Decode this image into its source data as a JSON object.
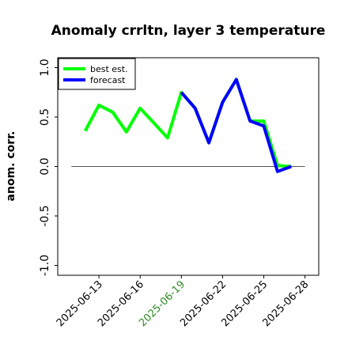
{
  "chart_data": {
    "type": "line",
    "title": "Anomaly crrltn, layer 3 temperature",
    "xlabel": "",
    "ylabel": "anom. corr.",
    "xlim": [
      "2025-06-10",
      "2025-06-29"
    ],
    "ylim": [
      -1.1,
      1.1
    ],
    "y_ticks": [
      -1.0,
      -0.5,
      0.0,
      0.5,
      1.0
    ],
    "y_tick_labels": [
      "-1.0",
      "-0.5",
      "0.0",
      "0.5",
      "1.0"
    ],
    "x_ticks": [
      "2025-06-13",
      "2025-06-16",
      "2025-06-19",
      "2025-06-22",
      "2025-06-25",
      "2025-06-28"
    ],
    "highlighted_x_tick": "2025-06-19",
    "grid": false,
    "reference_line": {
      "y": 0.0,
      "from": "2025-06-11",
      "to": "2025-06-28"
    },
    "legend": {
      "placement": "top-left"
    },
    "series": [
      {
        "name": "best est.",
        "color": "#00ff00",
        "x": [
          "2025-06-12",
          "2025-06-13",
          "2025-06-14",
          "2025-06-15",
          "2025-06-16",
          "2025-06-17",
          "2025-06-18",
          "2025-06-19",
          "2025-06-20",
          "2025-06-21",
          "2025-06-22",
          "2025-06-23",
          "2025-06-24",
          "2025-06-25",
          "2025-06-26",
          "2025-06-27"
        ],
        "values": [
          0.36,
          0.62,
          0.55,
          0.35,
          0.59,
          0.44,
          0.29,
          0.75,
          0.59,
          0.24,
          0.65,
          0.88,
          0.46,
          0.46,
          0.01,
          0.0
        ]
      },
      {
        "name": "forecast",
        "color": "#0000ff",
        "x": [
          "2025-06-19",
          "2025-06-20",
          "2025-06-21",
          "2025-06-22",
          "2025-06-23",
          "2025-06-24",
          "2025-06-25",
          "2025-06-26",
          "2025-06-27"
        ],
        "values": [
          0.75,
          0.59,
          0.24,
          0.65,
          0.88,
          0.46,
          0.41,
          -0.05,
          0.0
        ]
      }
    ]
  }
}
